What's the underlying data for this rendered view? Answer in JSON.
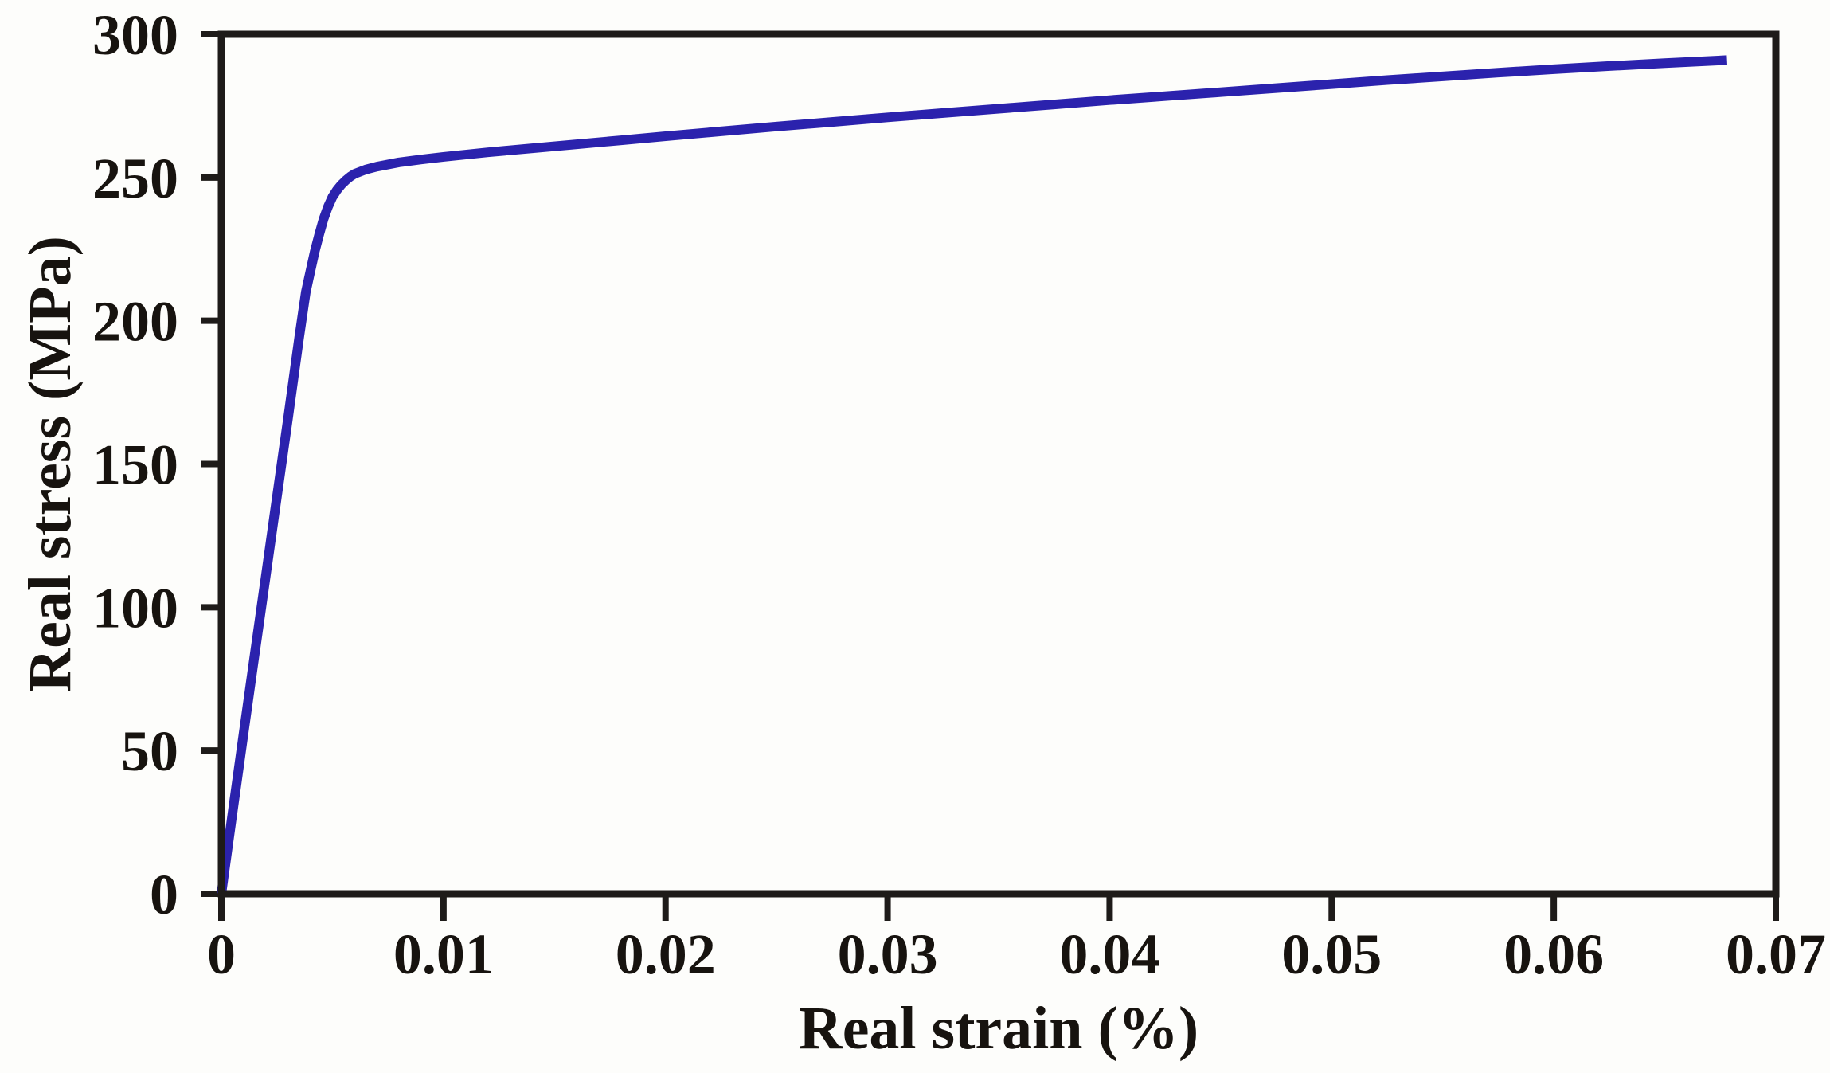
{
  "figure": {
    "background_color": "#fdfdfb",
    "axis_color": "#1e1b19",
    "text_color": "#17130f",
    "curve_color": "#2b22ad"
  },
  "chart_data": {
    "type": "line",
    "title": "",
    "xlabel": "Real strain (%)",
    "ylabel": "Real stress (MPa)",
    "xlim": [
      0,
      0.07
    ],
    "ylim": [
      0,
      300
    ],
    "grid": false,
    "legend": false,
    "x_ticks": [
      {
        "value": 0,
        "label": "0"
      },
      {
        "value": 0.01,
        "label": "0.01"
      },
      {
        "value": 0.02,
        "label": "0.02"
      },
      {
        "value": 0.03,
        "label": "0.03"
      },
      {
        "value": 0.04,
        "label": "0.04"
      },
      {
        "value": 0.05,
        "label": "0.05"
      },
      {
        "value": 0.06,
        "label": "0.06"
      },
      {
        "value": 0.07,
        "label": "0.07"
      }
    ],
    "y_ticks": [
      {
        "value": 0,
        "label": "0"
      },
      {
        "value": 50,
        "label": "50"
      },
      {
        "value": 100,
        "label": "100"
      },
      {
        "value": 150,
        "label": "150"
      },
      {
        "value": 200,
        "label": "200"
      },
      {
        "value": 250,
        "label": "250"
      },
      {
        "value": 300,
        "label": "300"
      }
    ],
    "series": [
      {
        "name": "real-stress-vs-real-strain",
        "color": "#2b22ad",
        "stroke_width": 12,
        "points": [
          [
            0,
            0
          ],
          [
            0.0005,
            28
          ],
          [
            0.001,
            56
          ],
          [
            0.0015,
            83.5
          ],
          [
            0.002,
            111
          ],
          [
            0.0025,
            138.5
          ],
          [
            0.003,
            166
          ],
          [
            0.0035,
            194
          ],
          [
            0.0038,
            210
          ],
          [
            0.004,
            217
          ],
          [
            0.0042,
            224
          ],
          [
            0.0044,
            230
          ],
          [
            0.0046,
            235.5
          ],
          [
            0.0048,
            239.8
          ],
          [
            0.005,
            243.2
          ],
          [
            0.0052,
            245.6
          ],
          [
            0.0054,
            247.5
          ],
          [
            0.0056,
            249
          ],
          [
            0.0058,
            250.3
          ],
          [
            0.006,
            251.3
          ],
          [
            0.0065,
            252.8
          ],
          [
            0.007,
            253.8
          ],
          [
            0.008,
            255.3
          ],
          [
            0.009,
            256.3
          ],
          [
            0.01,
            257.2
          ],
          [
            0.012,
            258.8
          ],
          [
            0.014,
            260.2
          ],
          [
            0.016,
            261.6
          ],
          [
            0.018,
            263
          ],
          [
            0.02,
            264.4
          ],
          [
            0.0225,
            266.1
          ],
          [
            0.025,
            267.8
          ],
          [
            0.0275,
            269.4
          ],
          [
            0.03,
            271
          ],
          [
            0.0325,
            272.5
          ],
          [
            0.035,
            274
          ],
          [
            0.0375,
            275.5
          ],
          [
            0.04,
            277
          ],
          [
            0.0425,
            278.4
          ],
          [
            0.045,
            279.8
          ],
          [
            0.0475,
            281.2
          ],
          [
            0.05,
            282.6
          ],
          [
            0.0525,
            284
          ],
          [
            0.055,
            285.3
          ],
          [
            0.0575,
            286.6
          ],
          [
            0.06,
            287.8
          ],
          [
            0.0625,
            288.9
          ],
          [
            0.065,
            289.9
          ],
          [
            0.0678,
            291
          ]
        ]
      }
    ]
  }
}
